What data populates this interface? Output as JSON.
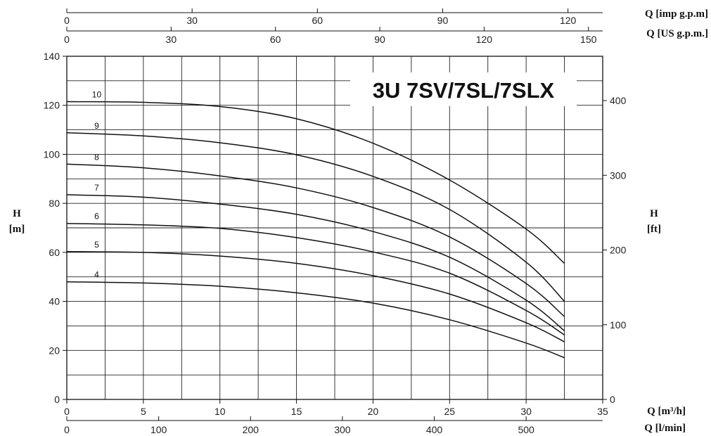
{
  "chart_data": {
    "type": "line",
    "title": "3U 7SV/7SL/7SLX",
    "x": {
      "label": "Q [m³/h]",
      "range": [
        0,
        35
      ],
      "ticks": [
        0,
        5,
        10,
        15,
        20,
        25,
        30,
        35
      ]
    },
    "x_lmin": {
      "label": "Q [l/min]",
      "range": [
        0,
        583.33
      ],
      "ticks": [
        0,
        100,
        200,
        300,
        400,
        500
      ]
    },
    "x_top_us": {
      "label": "Q [US g.p.m.]",
      "range": [
        0,
        154.1
      ],
      "ticks": [
        0,
        30,
        60,
        90,
        120,
        150
      ]
    },
    "x_top_imp": {
      "label": "Q [imp g.p.m]",
      "range": [
        0,
        128.3
      ],
      "ticks": [
        0,
        30,
        60,
        90,
        120
      ]
    },
    "y": {
      "label": "H\n[m]",
      "range": [
        0,
        140
      ],
      "ticks": [
        0,
        20,
        40,
        60,
        80,
        100,
        120,
        140
      ]
    },
    "y_right": {
      "label": "H\n[ft]",
      "range": [
        0,
        459.3
      ],
      "ticks": [
        0,
        100,
        200,
        300,
        400
      ]
    },
    "grid": true,
    "series": [
      {
        "name": "10",
        "x": [
          0,
          5,
          10,
          15,
          20,
          25,
          30,
          32.5
        ],
        "y": [
          121.5,
          121.2,
          119.5,
          114.5,
          104.5,
          89.5,
          69.5,
          55.5
        ]
      },
      {
        "name": "9",
        "x": [
          0,
          5,
          10,
          15,
          20,
          25,
          30,
          32.5
        ],
        "y": [
          108.8,
          107.5,
          104.7,
          99.8,
          91,
          77.5,
          56,
          40
        ]
      },
      {
        "name": "8",
        "x": [
          0,
          5,
          10,
          15,
          20,
          25,
          30,
          32.5
        ],
        "y": [
          96,
          94.5,
          91.2,
          86.3,
          78.3,
          66.3,
          47.3,
          33.8
        ]
      },
      {
        "name": "7",
        "x": [
          0,
          5,
          10,
          15,
          20,
          25,
          30,
          32.5
        ],
        "y": [
          83.5,
          82.5,
          79.7,
          75.5,
          68.5,
          58,
          40.5,
          28
        ]
      },
      {
        "name": "6",
        "x": [
          0,
          5,
          10,
          15,
          20,
          25,
          30,
          32.5
        ],
        "y": [
          71.8,
          71.2,
          69.8,
          66,
          60.2,
          51.5,
          36.3,
          26.3
        ]
      },
      {
        "name": "5",
        "x": [
          0,
          5,
          10,
          15,
          20,
          25,
          30,
          32.5
        ],
        "y": [
          60.3,
          60,
          58.5,
          55.5,
          50.5,
          43,
          31.3,
          23.5
        ]
      },
      {
        "name": "4",
        "x": [
          0,
          5,
          10,
          15,
          20,
          25,
          30,
          32.5
        ],
        "y": [
          48,
          47.5,
          46.2,
          43.5,
          39.3,
          32.5,
          23,
          17
        ]
      }
    ]
  }
}
